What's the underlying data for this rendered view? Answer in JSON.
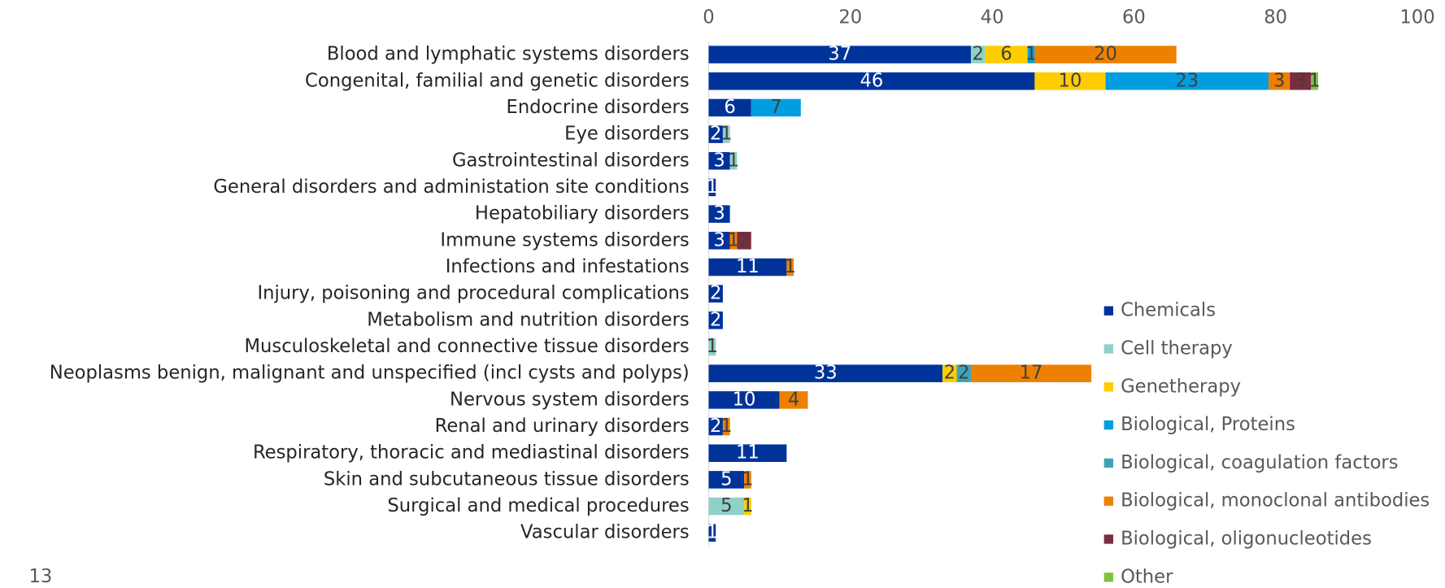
{
  "chart_data": {
    "type": "stacked_bar_horizontal",
    "categories": [
      "Blood and lymphatic systems disorders",
      "Congenital, familial and genetic disorders",
      "Endocrine disorders",
      "Eye disorders",
      "Gastrointestinal disorders",
      "General disorders and administation site conditions",
      "Hepatobiliary disorders",
      "Immune systems disorders",
      "Infections and infestations",
      "Injury, poisoning and procedural complications",
      "Metabolism and nutrition disorders",
      "Musculoskeletal and connective tissue disorders",
      "Neoplasms benign, malignant and unspecified (incl cysts and polyps)",
      "Nervous system disorders",
      "Renal and urinary disorders",
      "Respiratory, thoracic and mediastinal disorders",
      "Skin and subcutaneous tissue disorders",
      "Surgical and medical procedures",
      "Vascular disorders"
    ],
    "series": [
      {
        "name": "Chemicals",
        "color": "#00339a",
        "values": [
          37,
          46,
          6,
          2,
          3,
          1,
          3,
          3,
          11,
          2,
          2,
          null,
          33,
          10,
          2,
          11,
          5,
          null,
          1
        ]
      },
      {
        "name": "Cell therapy",
        "color": "#8fd0c9",
        "values": [
          2,
          null,
          null,
          1,
          1,
          null,
          null,
          null,
          null,
          null,
          null,
          1,
          null,
          null,
          null,
          null,
          null,
          5,
          null
        ]
      },
      {
        "name": "Genetherapy",
        "color": "#ffcc00",
        "values": [
          6,
          10,
          null,
          null,
          null,
          null,
          null,
          null,
          null,
          null,
          null,
          null,
          2,
          null,
          null,
          null,
          null,
          1,
          null
        ]
      },
      {
        "name": "Biological, Proteins",
        "color": "#009ee0",
        "values": [
          1,
          23,
          7,
          null,
          null,
          null,
          null,
          null,
          null,
          null,
          null,
          null,
          null,
          null,
          null,
          null,
          null,
          null,
          null
        ]
      },
      {
        "name": "Biological, coagulation factors",
        "color": "#3ea3b8",
        "values": [
          null,
          null,
          null,
          null,
          null,
          null,
          null,
          null,
          null,
          null,
          null,
          null,
          2,
          null,
          null,
          null,
          null,
          null,
          null
        ]
      },
      {
        "name": "Biological, monoclonal antibodies",
        "color": "#ee8000",
        "values": [
          20,
          3,
          null,
          null,
          null,
          null,
          null,
          1,
          1,
          null,
          null,
          null,
          17,
          4,
          1,
          null,
          1,
          null,
          null
        ]
      },
      {
        "name": "Biological, oligonucleotides",
        "color": "#7b2c3f",
        "values": [
          null,
          3,
          null,
          null,
          null,
          null,
          null,
          2,
          null,
          null,
          null,
          null,
          null,
          null,
          null,
          null,
          null,
          null,
          null
        ]
      },
      {
        "name": "Other",
        "color": "#80c342",
        "values": [
          null,
          1,
          null,
          null,
          null,
          null,
          null,
          null,
          null,
          null,
          null,
          null,
          null,
          null,
          null,
          null,
          null,
          null,
          null
        ]
      }
    ],
    "xlim": [
      0,
      100
    ],
    "xticks": [
      0,
      20,
      40,
      60,
      80,
      100
    ],
    "legend": "right",
    "page_number": "13"
  }
}
